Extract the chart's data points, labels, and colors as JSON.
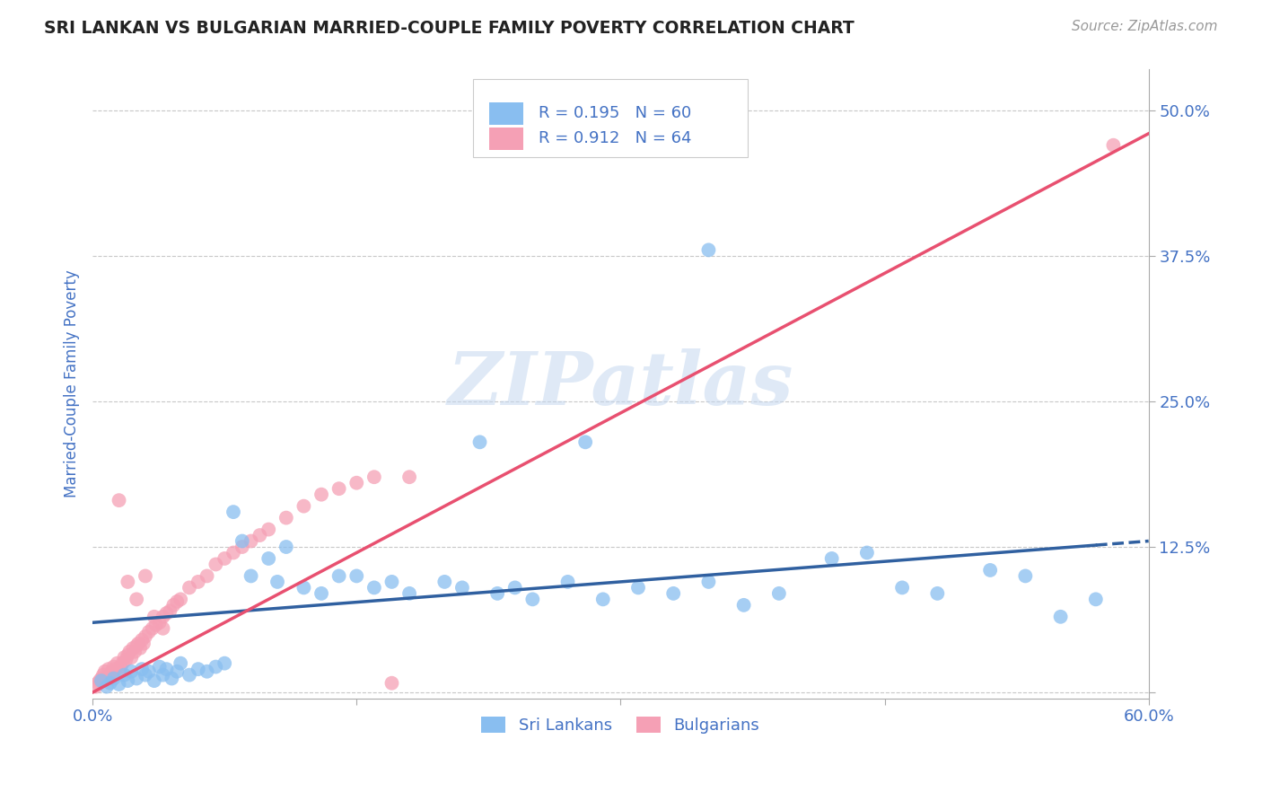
{
  "title": "SRI LANKAN VS BULGARIAN MARRIED-COUPLE FAMILY POVERTY CORRELATION CHART",
  "source": "Source: ZipAtlas.com",
  "ylabel_label": "Married-Couple Family Poverty",
  "xlim": [
    0.0,
    0.6
  ],
  "ylim": [
    -0.005,
    0.535
  ],
  "xticks": [
    0.0,
    0.15,
    0.3,
    0.45,
    0.6
  ],
  "xtick_labels": [
    "0.0%",
    "",
    "",
    "",
    "60.0%"
  ],
  "ytick_positions": [
    0.0,
    0.125,
    0.25,
    0.375,
    0.5
  ],
  "ytick_labels": [
    "",
    "12.5%",
    "25.0%",
    "37.5%",
    "50.0%"
  ],
  "watermark": "ZIPatlas",
  "sri_color": "#89BEF0",
  "bul_color": "#F5A0B5",
  "sri_line_color": "#3060A0",
  "bul_line_color": "#E85070",
  "axis_label_color": "#4472C4",
  "tick_color": "#4472C4",
  "grid_color": "#C8C8C8",
  "background_color": "#FFFFFF",
  "sri_scatter_x": [
    0.005,
    0.008,
    0.01,
    0.012,
    0.015,
    0.018,
    0.02,
    0.022,
    0.025,
    0.028,
    0.03,
    0.032,
    0.035,
    0.038,
    0.04,
    0.042,
    0.045,
    0.048,
    0.05,
    0.055,
    0.06,
    0.065,
    0.07,
    0.075,
    0.08,
    0.085,
    0.09,
    0.1,
    0.105,
    0.11,
    0.12,
    0.13,
    0.14,
    0.15,
    0.16,
    0.17,
    0.18,
    0.2,
    0.21,
    0.22,
    0.23,
    0.24,
    0.25,
    0.27,
    0.29,
    0.31,
    0.33,
    0.35,
    0.37,
    0.39,
    0.42,
    0.44,
    0.46,
    0.48,
    0.51,
    0.53,
    0.55,
    0.57,
    0.35,
    0.28
  ],
  "sri_scatter_y": [
    0.01,
    0.005,
    0.008,
    0.012,
    0.007,
    0.015,
    0.01,
    0.018,
    0.012,
    0.02,
    0.015,
    0.018,
    0.01,
    0.022,
    0.015,
    0.02,
    0.012,
    0.018,
    0.025,
    0.015,
    0.02,
    0.018,
    0.022,
    0.025,
    0.155,
    0.13,
    0.1,
    0.115,
    0.095,
    0.125,
    0.09,
    0.085,
    0.1,
    0.1,
    0.09,
    0.095,
    0.085,
    0.095,
    0.09,
    0.215,
    0.085,
    0.09,
    0.08,
    0.095,
    0.08,
    0.09,
    0.085,
    0.095,
    0.075,
    0.085,
    0.115,
    0.12,
    0.09,
    0.085,
    0.105,
    0.1,
    0.065,
    0.08,
    0.38,
    0.215
  ],
  "bul_scatter_x": [
    0.002,
    0.003,
    0.004,
    0.005,
    0.006,
    0.007,
    0.008,
    0.009,
    0.01,
    0.011,
    0.012,
    0.013,
    0.014,
    0.015,
    0.016,
    0.017,
    0.018,
    0.019,
    0.02,
    0.021,
    0.022,
    0.023,
    0.024,
    0.025,
    0.026,
    0.027,
    0.028,
    0.029,
    0.03,
    0.032,
    0.034,
    0.036,
    0.038,
    0.04,
    0.042,
    0.044,
    0.046,
    0.048,
    0.05,
    0.055,
    0.06,
    0.065,
    0.07,
    0.075,
    0.08,
    0.085,
    0.09,
    0.095,
    0.1,
    0.11,
    0.12,
    0.13,
    0.14,
    0.15,
    0.16,
    0.17,
    0.18,
    0.02,
    0.025,
    0.03,
    0.035,
    0.04,
    0.015,
    0.58
  ],
  "bul_scatter_y": [
    0.005,
    0.008,
    0.01,
    0.012,
    0.015,
    0.018,
    0.012,
    0.02,
    0.015,
    0.018,
    0.022,
    0.02,
    0.025,
    0.018,
    0.022,
    0.025,
    0.03,
    0.028,
    0.032,
    0.035,
    0.03,
    0.038,
    0.035,
    0.04,
    0.042,
    0.038,
    0.045,
    0.042,
    0.048,
    0.052,
    0.055,
    0.058,
    0.06,
    0.065,
    0.068,
    0.07,
    0.075,
    0.078,
    0.08,
    0.09,
    0.095,
    0.1,
    0.11,
    0.115,
    0.12,
    0.125,
    0.13,
    0.135,
    0.14,
    0.15,
    0.16,
    0.17,
    0.175,
    0.18,
    0.185,
    0.008,
    0.185,
    0.095,
    0.08,
    0.1,
    0.065,
    0.055,
    0.165,
    0.47
  ],
  "sri_line_x": [
    0.0,
    0.6
  ],
  "sri_line_y": [
    0.06,
    0.13
  ],
  "bul_line_x": [
    0.0,
    0.6
  ],
  "bul_line_y": [
    0.0,
    0.48
  ]
}
